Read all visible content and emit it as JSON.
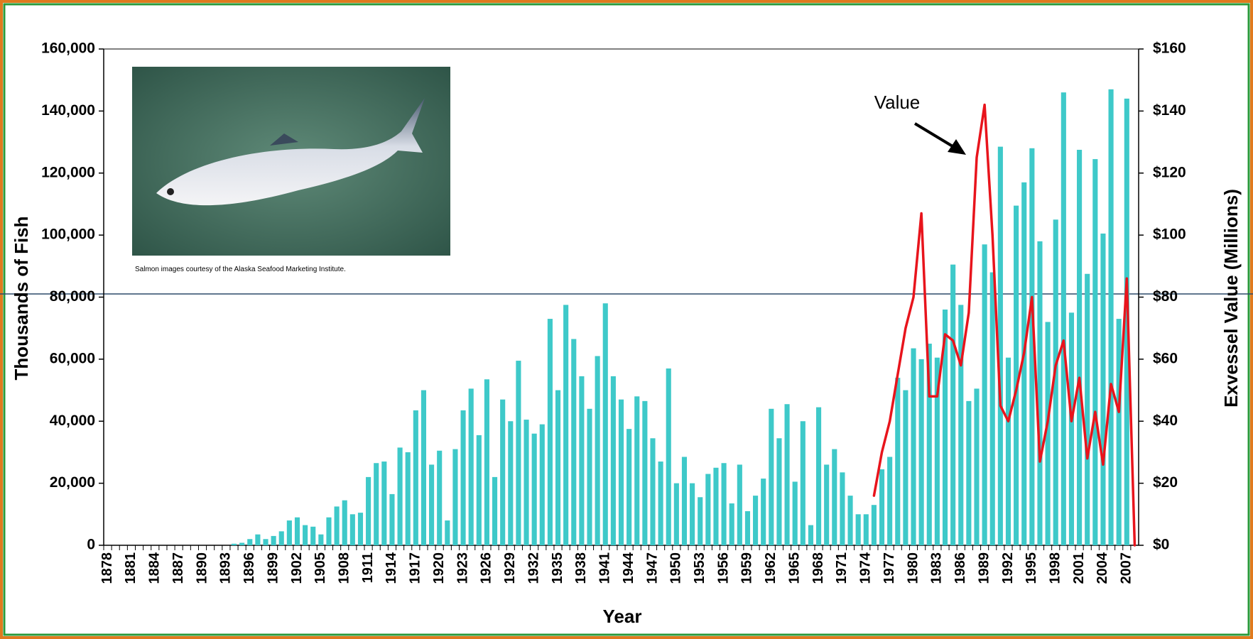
{
  "chart_data": {
    "type": "bar",
    "x_label": "Year",
    "y_label": "Thousands of Fish",
    "y2_label": "Exvessel Value (Millions)",
    "annotation": "Value",
    "image_caption": "Salmon images courtesy of the Alaska Seafood Marketing Institute.",
    "categories": [
      "1878",
      null,
      null,
      "1881",
      null,
      null,
      "1884",
      null,
      null,
      "1887",
      null,
      null,
      "1890",
      null,
      null,
      "1893",
      null,
      null,
      "1896",
      null,
      null,
      "1899",
      null,
      null,
      "1902",
      null,
      null,
      "1905",
      null,
      null,
      "1908",
      null,
      null,
      "1911",
      null,
      null,
      "1914",
      null,
      null,
      "1917",
      null,
      null,
      "1920",
      null,
      null,
      "1923",
      null,
      null,
      "1926",
      null,
      null,
      "1929",
      null,
      null,
      "1932",
      null,
      null,
      "1935",
      null,
      null,
      "1938",
      null,
      null,
      "1941",
      null,
      null,
      "1944",
      null,
      null,
      "1947",
      null,
      null,
      "1950",
      null,
      null,
      "1953",
      null,
      null,
      "1956",
      null,
      null,
      "1959",
      null,
      null,
      "1962",
      null,
      null,
      "1965",
      null,
      null,
      "1968",
      null,
      null,
      "1971",
      null,
      null,
      "1974",
      null,
      null,
      "1977",
      null,
      null,
      "1980",
      null,
      null,
      "1983",
      null,
      null,
      "1986",
      null,
      null,
      "1989",
      null,
      null,
      "1992",
      null,
      null,
      "1995",
      null,
      null,
      "1998",
      null,
      null,
      "2001",
      null,
      null,
      "2004",
      null,
      null,
      "2007",
      null
    ],
    "series": [
      {
        "type": "bar",
        "color": "#3ec9c9",
        "values": [
          0,
          0,
          0,
          0,
          0,
          0,
          0,
          0,
          0,
          0,
          0,
          0,
          0,
          0,
          0,
          0,
          500,
          800,
          2000,
          3500,
          2000,
          3000,
          4500,
          8000,
          9000,
          6500,
          6000,
          3500,
          9000,
          12500,
          14500,
          10000,
          10500,
          22000,
          26500,
          27000,
          16500,
          31500,
          30000,
          43500,
          50000,
          26000,
          30500,
          8000,
          31000,
          43500,
          50500,
          35500,
          53500,
          22000,
          47000,
          40000,
          59500,
          40500,
          36000,
          39000,
          73000,
          50000,
          77500,
          66500,
          54500,
          44000,
          61000,
          78000,
          54500,
          47000,
          37500,
          48000,
          46500,
          34500,
          27000,
          57000,
          20000,
          28500,
          20000,
          15500,
          23000,
          25000,
          26500,
          13500,
          26000,
          11000,
          16000,
          21500,
          44000,
          34500,
          45500,
          20500,
          40000,
          6500,
          44500,
          26000,
          31000,
          23500,
          16000,
          10000,
          10000,
          13000,
          24500,
          28500,
          54000,
          50000,
          63500,
          60000,
          65000,
          60500,
          76000,
          90500,
          77500,
          46500,
          50500,
          97000,
          88000,
          128500,
          60500,
          109500,
          117000,
          128000,
          98000,
          72000,
          105000,
          146000,
          75000,
          127500,
          87500,
          124500,
          100500,
          147000,
          73000,
          144000,
          null
        ]
      },
      {
        "type": "line",
        "axis": "y2",
        "color": "#e8141c",
        "values": [
          null,
          null,
          null,
          null,
          null,
          null,
          null,
          null,
          null,
          null,
          null,
          null,
          null,
          null,
          null,
          null,
          null,
          null,
          null,
          null,
          null,
          null,
          null,
          null,
          null,
          null,
          null,
          null,
          null,
          null,
          null,
          null,
          null,
          null,
          null,
          null,
          null,
          null,
          null,
          null,
          null,
          null,
          null,
          null,
          null,
          null,
          null,
          null,
          null,
          null,
          null,
          null,
          null,
          null,
          null,
          null,
          null,
          null,
          null,
          null,
          null,
          null,
          null,
          null,
          null,
          null,
          null,
          null,
          null,
          null,
          null,
          null,
          null,
          null,
          null,
          null,
          null,
          null,
          null,
          null,
          null,
          null,
          null,
          null,
          null,
          null,
          null,
          null,
          null,
          null,
          null,
          null,
          null,
          null,
          null,
          null,
          null,
          16,
          30,
          40,
          55,
          70,
          80,
          107,
          48,
          48,
          68,
          66,
          58,
          75,
          125,
          142,
          100,
          45,
          40,
          50,
          62,
          80,
          27,
          40,
          58,
          66,
          40,
          54,
          28,
          43,
          26,
          52,
          43,
          86,
          0
        ]
      }
    ],
    "ylim": [
      0,
      160000
    ],
    "yticks": [
      0,
      {
        "value": 20000,
        "label": "20,000"
      },
      {
        "value": 40000,
        "label": "40,000"
      },
      {
        "value": 60000,
        "label": "60,000"
      },
      {
        "value": 80000,
        "label": "80,000"
      },
      {
        "value": 100000,
        "label": "100,000"
      },
      {
        "value": 120000,
        "label": "120,000"
      },
      {
        "value": 140000,
        "label": "140,000"
      },
      {
        "value": 160000,
        "label": "160,000"
      }
    ],
    "y2lim": [
      0,
      160
    ],
    "y2ticks": [
      {
        "value": 0,
        "label": "$0"
      },
      {
        "value": 20,
        "label": "$20"
      },
      {
        "value": 40,
        "label": "$40"
      },
      {
        "value": 60,
        "label": "$60"
      },
      {
        "value": 80,
        "label": "$80"
      },
      {
        "value": 100,
        "label": "$100"
      },
      {
        "value": 120,
        "label": "$120"
      },
      {
        "value": 140,
        "label": "$140"
      },
      {
        "value": 160,
        "label": "$160"
      }
    ]
  }
}
